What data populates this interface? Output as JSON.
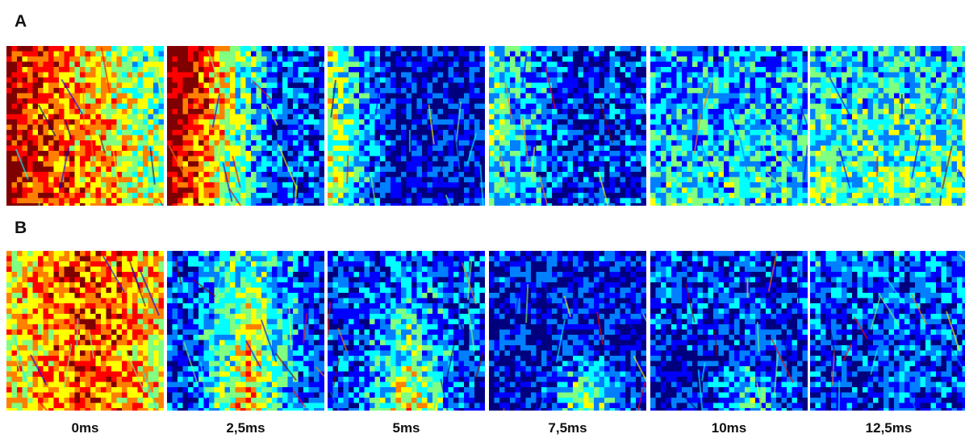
{
  "rows": [
    {
      "label": "A"
    },
    {
      "label": "B"
    }
  ],
  "time_labels": [
    "0ms",
    "2,5ms",
    "5ms",
    "7,5ms",
    "10ms",
    "12,5ms"
  ],
  "colormap": [
    "#00007f",
    "#0000ff",
    "#0080ff",
    "#00ffff",
    "#80ff80",
    "#ffff00",
    "#ff8000",
    "#ff0000",
    "#7f0000"
  ]
}
